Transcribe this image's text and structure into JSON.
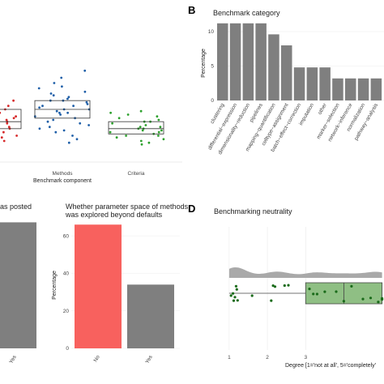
{
  "panel_letters": {
    "b": "B",
    "d": "D"
  },
  "chart_data": [
    {
      "panel": "A",
      "type": "scatter",
      "title": "",
      "xlabel": "Benchmark component",
      "ylabel": "",
      "categories": [
        "",
        "Methods",
        "Criteria"
      ],
      "series": [
        {
          "category": "",
          "color": "#d62728",
          "values": [
            0.9,
            0.45,
            0.42,
            0.4,
            0.38,
            0.36,
            0.35,
            0.34,
            0.33,
            0.32,
            0.31,
            0.3,
            0.29,
            0.27,
            0.25,
            0.24,
            0.22
          ],
          "box": {
            "q1": 0.29,
            "median": 0.33,
            "q3": 0.4
          }
        },
        {
          "category": "Methods",
          "color": "#1f5fa8",
          "values": [
            0.62,
            0.58,
            0.55,
            0.53,
            0.52,
            0.5,
            0.49,
            0.48,
            0.47,
            0.46,
            0.45,
            0.45,
            0.44,
            0.43,
            0.42,
            0.42,
            0.41,
            0.4,
            0.4,
            0.39,
            0.38,
            0.38,
            0.37,
            0.36,
            0.35,
            0.34,
            0.33,
            0.32,
            0.31,
            0.3,
            0.29,
            0.28,
            0.27,
            0.25,
            0.23,
            0.21
          ],
          "box": {
            "q1": 0.35,
            "median": 0.4,
            "q3": 0.45
          }
        },
        {
          "category": "Criteria",
          "color": "#2ca02c",
          "values": [
            0.39,
            0.38,
            0.37,
            0.36,
            0.35,
            0.34,
            0.33,
            0.33,
            0.32,
            0.31,
            0.3,
            0.3,
            0.29,
            0.29,
            0.28,
            0.28,
            0.27,
            0.27,
            0.26,
            0.25,
            0.25,
            0.24,
            0.23,
            0.22,
            0.21,
            0.2
          ],
          "box": {
            "q1": 0.26,
            "median": 0.29,
            "q3": 0.33
          }
        }
      ]
    },
    {
      "panel": "B",
      "type": "bar",
      "title": "Benchmark category",
      "xlabel": "",
      "ylabel": "Percentage",
      "ylim": [
        0,
        12
      ],
      "yticks": [
        0,
        5,
        10
      ],
      "color": "#7f7f7f",
      "categories": [
        "clustering",
        "differential−expression",
        "dimensionality−reduction",
        "pipelines",
        "mapping−quantification",
        "celltype−assignment",
        "batch−effect−correction",
        "imputation",
        "other",
        "marker−selection",
        "network−inference",
        "normalization",
        "pathway−analysis"
      ],
      "values": [
        11.2,
        11.2,
        11.2,
        11.2,
        9.6,
        8.0,
        4.8,
        4.8,
        4.8,
        3.2,
        3.2,
        3.2,
        3.2
      ]
    },
    {
      "panel": "C",
      "type": "bar",
      "title": "as posted",
      "ylabel": "",
      "categories": [
        "Yes"
      ],
      "values": [
        66
      ],
      "ylim": [
        0,
        70
      ],
      "color": "#7f7f7f"
    },
    {
      "panel": "C2",
      "type": "bar",
      "title": "Whether parameter space of methods was explored beyond defaults",
      "title_lines": [
        "Whether parameter space of methods",
        "was explored beyond defaults"
      ],
      "ylabel": "Percentage",
      "ylim": [
        0,
        70
      ],
      "yticks": [
        0,
        20,
        40,
        60
      ],
      "categories": [
        "No",
        "Yes"
      ],
      "values": [
        66,
        34
      ],
      "colors": [
        "#f8615e",
        "#7f7f7f"
      ]
    },
    {
      "panel": "D",
      "type": "box",
      "title": "Benchmarking neutrality",
      "xlabel": "Degree [1='not at all', 5='completely'",
      "xticks": [
        1,
        2,
        3
      ],
      "xlim": [
        0.6,
        5.05
      ],
      "values": [
        1.05,
        1.1,
        1.12,
        1.15,
        1.18,
        1.2,
        1.22,
        1.6,
        2.1,
        2.15,
        2.2,
        2.45,
        2.55,
        3.1,
        3.2,
        3.3,
        3.5,
        3.8,
        4.0,
        4.2,
        4.5,
        4.7,
        4.9,
        5.0,
        5.0
      ],
      "box": {
        "min": 1.0,
        "q1": 3.0,
        "median": 4.0,
        "q3": 5.0,
        "max": 5.0
      },
      "point_color": "#1a6b1a",
      "box_color": "#8fbf84"
    }
  ]
}
